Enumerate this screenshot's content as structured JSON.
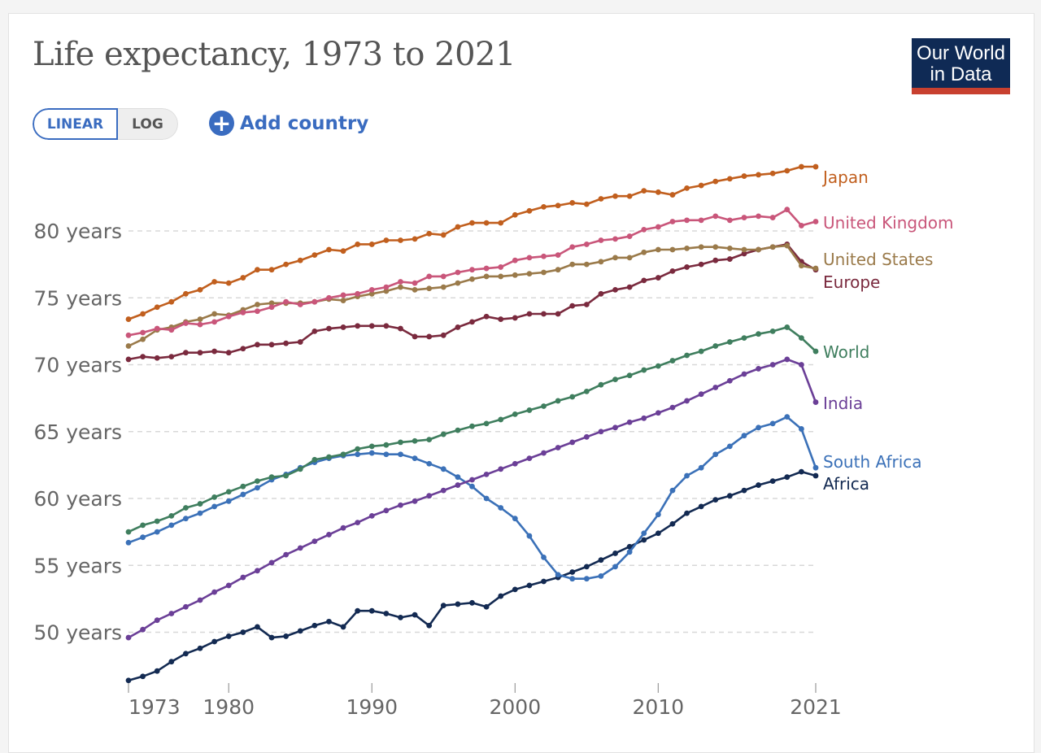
{
  "header": {
    "title": "Life expectancy, 1973 to 2021",
    "logo_line1": "Our World",
    "logo_line2": "in Data"
  },
  "controls": {
    "scale_options": [
      "LINEAR",
      "LOG"
    ],
    "selected_scale": "LINEAR",
    "add_country_label": "Add country",
    "add_icon": "plus-circle-icon"
  },
  "chart_data": {
    "type": "line",
    "title": "Life expectancy, 1973 to 2021",
    "xlabel": "",
    "ylabel": "",
    "x_tick_labels": [
      "1973",
      "1980",
      "1990",
      "2000",
      "2010",
      "2021"
    ],
    "x_ticks": [
      1973,
      1980,
      1990,
      2000,
      2010,
      2021
    ],
    "y_ticks": [
      50,
      55,
      60,
      65,
      70,
      75,
      80
    ],
    "y_tick_labels": [
      "50 years",
      "55 years",
      "60 years",
      "65 years",
      "70 years",
      "75 years",
      "80 years"
    ],
    "ylim": [
      46,
      86
    ],
    "xlim": [
      1973,
      2021
    ],
    "grid": "horizontal dashed",
    "legend": "right, inline labels at line ends",
    "x": [
      1973,
      1974,
      1975,
      1976,
      1977,
      1978,
      1979,
      1980,
      1981,
      1982,
      1983,
      1984,
      1985,
      1986,
      1987,
      1988,
      1989,
      1990,
      1991,
      1992,
      1993,
      1994,
      1995,
      1996,
      1997,
      1998,
      1999,
      2000,
      2001,
      2002,
      2003,
      2004,
      2005,
      2006,
      2007,
      2008,
      2009,
      2010,
      2011,
      2012,
      2013,
      2014,
      2015,
      2016,
      2017,
      2018,
      2019,
      2020,
      2021
    ],
    "series": [
      {
        "name": "Japan",
        "color": "#c15f1e",
        "values": [
          73.4,
          73.8,
          74.3,
          74.7,
          75.3,
          75.6,
          76.2,
          76.1,
          76.5,
          77.1,
          77.1,
          77.5,
          77.8,
          78.2,
          78.6,
          78.5,
          79.0,
          79.0,
          79.3,
          79.3,
          79.4,
          79.8,
          79.7,
          80.3,
          80.6,
          80.6,
          80.6,
          81.2,
          81.5,
          81.8,
          81.9,
          82.1,
          82.0,
          82.4,
          82.6,
          82.6,
          83.0,
          82.9,
          82.7,
          83.2,
          83.4,
          83.7,
          83.9,
          84.1,
          84.2,
          84.3,
          84.5,
          84.8,
          84.8
        ]
      },
      {
        "name": "United Kingdom",
        "color": "#c9567a",
        "values": [
          72.2,
          72.4,
          72.7,
          72.6,
          73.1,
          73.0,
          73.2,
          73.6,
          73.9,
          74.0,
          74.3,
          74.7,
          74.5,
          74.7,
          75.0,
          75.2,
          75.3,
          75.6,
          75.8,
          76.2,
          76.1,
          76.6,
          76.6,
          76.9,
          77.1,
          77.2,
          77.3,
          77.8,
          78.0,
          78.1,
          78.2,
          78.8,
          79.0,
          79.3,
          79.4,
          79.6,
          80.1,
          80.3,
          80.7,
          80.8,
          80.8,
          81.1,
          80.8,
          81.0,
          81.1,
          81.0,
          81.6,
          80.4,
          80.7
        ]
      },
      {
        "name": "United States",
        "color": "#9a7a4a",
        "values": [
          71.4,
          71.9,
          72.6,
          72.8,
          73.2,
          73.4,
          73.8,
          73.7,
          74.1,
          74.5,
          74.6,
          74.6,
          74.6,
          74.7,
          74.9,
          74.8,
          75.1,
          75.3,
          75.5,
          75.8,
          75.6,
          75.7,
          75.8,
          76.1,
          76.4,
          76.6,
          76.6,
          76.7,
          76.8,
          76.9,
          77.1,
          77.5,
          77.5,
          77.7,
          78.0,
          78.0,
          78.4,
          78.6,
          78.6,
          78.7,
          78.8,
          78.8,
          78.7,
          78.6,
          78.6,
          78.8,
          78.9,
          77.4,
          77.2
        ]
      },
      {
        "name": "Europe",
        "color": "#7a2a3e",
        "values": [
          70.4,
          70.6,
          70.5,
          70.6,
          70.9,
          70.9,
          71.0,
          70.9,
          71.2,
          71.5,
          71.5,
          71.6,
          71.7,
          72.5,
          72.7,
          72.8,
          72.9,
          72.9,
          72.9,
          72.7,
          72.1,
          72.1,
          72.2,
          72.8,
          73.2,
          73.6,
          73.4,
          73.5,
          73.8,
          73.8,
          73.8,
          74.4,
          74.5,
          75.3,
          75.6,
          75.8,
          76.3,
          76.5,
          77.0,
          77.3,
          77.5,
          77.8,
          77.9,
          78.3,
          78.6,
          78.8,
          79.0,
          77.7,
          77.1
        ]
      },
      {
        "name": "World",
        "color": "#3f7e5e",
        "values": [
          57.5,
          58.0,
          58.3,
          58.7,
          59.3,
          59.6,
          60.1,
          60.5,
          60.9,
          61.3,
          61.6,
          61.7,
          62.2,
          62.9,
          63.1,
          63.3,
          63.7,
          63.9,
          64.0,
          64.2,
          64.3,
          64.4,
          64.8,
          65.1,
          65.4,
          65.6,
          65.9,
          66.3,
          66.6,
          66.9,
          67.3,
          67.6,
          68.0,
          68.5,
          68.9,
          69.2,
          69.6,
          69.9,
          70.3,
          70.7,
          71.0,
          71.4,
          71.7,
          72.0,
          72.3,
          72.5,
          72.8,
          72.0,
          71.0
        ]
      },
      {
        "name": "India",
        "color": "#6b3f97",
        "values": [
          49.6,
          50.2,
          50.9,
          51.4,
          51.9,
          52.4,
          53.0,
          53.5,
          54.1,
          54.6,
          55.2,
          55.8,
          56.3,
          56.8,
          57.3,
          57.8,
          58.2,
          58.7,
          59.1,
          59.5,
          59.8,
          60.2,
          60.6,
          61.0,
          61.4,
          61.8,
          62.2,
          62.6,
          63.0,
          63.4,
          63.8,
          64.2,
          64.6,
          65.0,
          65.3,
          65.7,
          66.0,
          66.4,
          66.8,
          67.3,
          67.8,
          68.3,
          68.8,
          69.3,
          69.7,
          70.0,
          70.4,
          70.0,
          67.2
        ]
      },
      {
        "name": "South Africa",
        "color": "#3b71b8",
        "values": [
          56.7,
          57.1,
          57.5,
          58.0,
          58.5,
          58.9,
          59.4,
          59.8,
          60.3,
          60.8,
          61.4,
          61.8,
          62.3,
          62.7,
          63.0,
          63.2,
          63.3,
          63.4,
          63.3,
          63.3,
          63.0,
          62.6,
          62.2,
          61.6,
          60.9,
          60.0,
          59.3,
          58.5,
          57.2,
          55.6,
          54.3,
          54.0,
          54.0,
          54.2,
          54.9,
          56.0,
          57.4,
          58.8,
          60.6,
          61.7,
          62.3,
          63.3,
          63.9,
          64.7,
          65.3,
          65.6,
          66.1,
          65.2,
          62.3
        ]
      },
      {
        "name": "Africa",
        "color": "#132a52",
        "values": [
          46.4,
          46.7,
          47.1,
          47.8,
          48.4,
          48.8,
          49.3,
          49.7,
          50.0,
          50.4,
          49.6,
          49.7,
          50.1,
          50.5,
          50.8,
          50.4,
          51.6,
          51.6,
          51.4,
          51.1,
          51.3,
          50.5,
          52.0,
          52.1,
          52.2,
          51.9,
          52.7,
          53.2,
          53.5,
          53.8,
          54.1,
          54.5,
          54.9,
          55.4,
          55.9,
          56.4,
          56.9,
          57.4,
          58.1,
          58.9,
          59.4,
          59.9,
          60.2,
          60.6,
          61.0,
          61.3,
          61.6,
          62.0,
          61.7
        ]
      }
    ]
  }
}
